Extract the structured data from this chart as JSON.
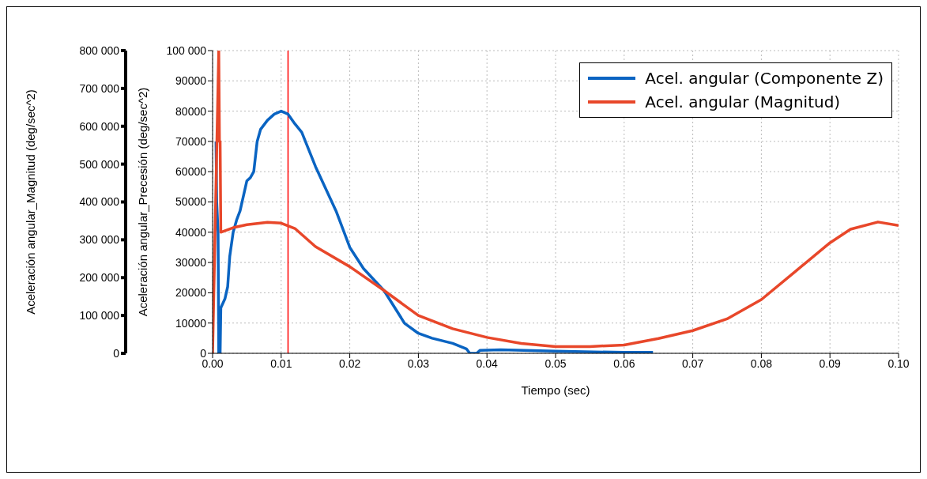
{
  "chart_data": {
    "type": "line",
    "xlabel": "Tiempo (sec)",
    "ylabel": "Aceleración angular_Precesión (deg/sec^2)",
    "y2label": "Aceleración angular_Magnitud (deg/sec^2)",
    "xlim": [
      0,
      0.1
    ],
    "xticks": [
      {
        "value": 0,
        "label": "0.00"
      },
      {
        "value": 0.01,
        "label": "0.01"
      },
      {
        "value": 0.02,
        "label": "0.02"
      },
      {
        "value": 0.03,
        "label": "0.03"
      },
      {
        "value": 0.04,
        "label": "0.04"
      },
      {
        "value": 0.05,
        "label": "0.05"
      },
      {
        "value": 0.06,
        "label": "0.06"
      },
      {
        "value": 0.07,
        "label": "0.07"
      },
      {
        "value": 0.08,
        "label": "0.08"
      },
      {
        "value": 0.09,
        "label": "0.09"
      },
      {
        "value": 0.1,
        "label": "0.10"
      }
    ],
    "ylim": [
      0,
      100000
    ],
    "yticks": [
      0,
      10000,
      20000,
      30000,
      40000,
      50000,
      60000,
      70000,
      80000,
      90000,
      {
        "value": 100000,
        "label": "100 000"
      }
    ],
    "y2lim": [
      0,
      800000
    ],
    "y2ticks": [
      0,
      {
        "value": 100000,
        "label": "100 000"
      },
      {
        "value": 200000,
        "label": "200 000"
      },
      {
        "value": 300000,
        "label": "300 000"
      },
      {
        "value": 400000,
        "label": "400 000"
      },
      {
        "value": 500000,
        "label": "500 000"
      },
      {
        "value": 600000,
        "label": "600 000"
      },
      {
        "value": 700000,
        "label": "700 000"
      },
      {
        "value": 800000,
        "label": "800 000"
      }
    ],
    "grid": true,
    "legend": "top right",
    "marker": "none",
    "line_style": "solid",
    "ref_lines": [
      {
        "axis": "x",
        "value": 0.011,
        "color": "#ff0000"
      }
    ],
    "series": [
      {
        "name": "Acel. angular (Componente Z)",
        "color": "#0a64c2",
        "axis": "y",
        "x": [
          0.0005,
          0.0006,
          0.0008,
          0.0009,
          0.0011,
          0.0012,
          0.0018,
          0.0022,
          0.0025,
          0.003,
          0.0035,
          0.004,
          0.005,
          0.0055,
          0.006,
          0.0065,
          0.007,
          0.008,
          0.009,
          0.01,
          0.011,
          0.012,
          0.013,
          0.015,
          0.018,
          0.02,
          0.022,
          0.025,
          0.028,
          0.03,
          0.032,
          0.035,
          0.037,
          0.0375,
          0.0385,
          0.039,
          0.042,
          0.05,
          0.06,
          0.062,
          0.0642
        ],
        "values": [
          70000,
          50000,
          40000,
          0,
          0,
          15000,
          18000,
          22000,
          32000,
          40000,
          44000,
          47000,
          57000,
          58000,
          60000,
          70000,
          74000,
          77000,
          79000,
          80000,
          79000,
          75800,
          73000,
          61700,
          47000,
          35000,
          28000,
          20700,
          9900,
          6600,
          5000,
          3300,
          1500,
          0,
          0,
          1000,
          1200,
          700,
          300,
          300,
          300
        ]
      },
      {
        "name": "Acel. angular (Magnitud)",
        "color": "#e8472a",
        "axis": "y2",
        "x": [
          0,
          0.0009,
          0.001,
          0.0011,
          0.0012,
          0.003,
          0.005,
          0.008,
          0.01,
          0.012,
          0.015,
          0.02,
          0.025,
          0.03,
          0.035,
          0.04,
          0.045,
          0.05,
          0.055,
          0.06,
          0.065,
          0.07,
          0.075,
          0.08,
          0.085,
          0.09,
          0.093,
          0.097,
          0.1
        ],
        "values": [
          0,
          800000,
          560000,
          560000,
          320000,
          332000,
          340000,
          346000,
          344000,
          330000,
          282000,
          229000,
          166000,
          100000,
          65000,
          42000,
          26000,
          18000,
          18000,
          22000,
          39000,
          60000,
          91000,
          142000,
          217000,
          292000,
          328000,
          347000,
          338000
        ]
      }
    ]
  }
}
